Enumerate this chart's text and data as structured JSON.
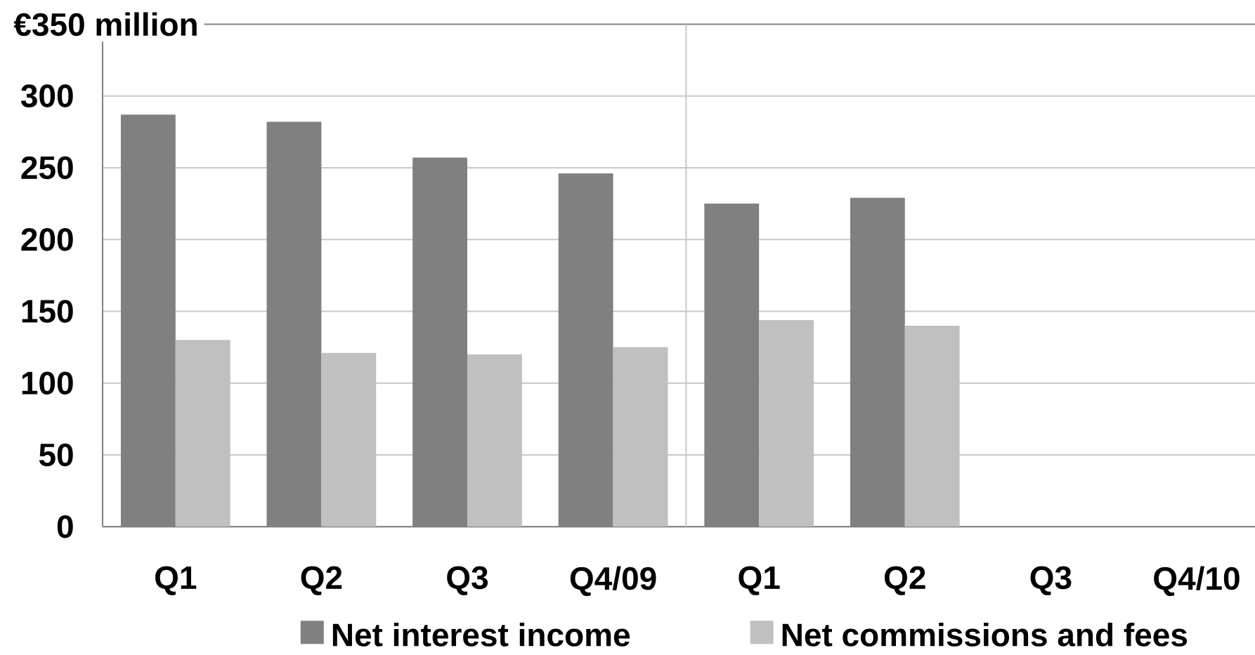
{
  "chart_data": {
    "type": "bar",
    "ylabel": "€350 million",
    "categories": [
      "Q1",
      "Q2",
      "Q3",
      "Q4/09",
      "Q1",
      "Q2",
      "Q3",
      "Q4/10"
    ],
    "series": [
      {
        "name": "Net interest income",
        "color": "#808080",
        "values": [
          287,
          282,
          257,
          246,
          225,
          229,
          null,
          null
        ]
      },
      {
        "name": "Net commissions and fees",
        "color": "#c0c0c0",
        "values": [
          130,
          121,
          120,
          125,
          144,
          140,
          null,
          null
        ]
      }
    ],
    "ylim": [
      0,
      350
    ],
    "yticks": [
      0,
      50,
      100,
      150,
      200,
      250,
      300
    ],
    "grid": "y",
    "legend": "bottom"
  }
}
